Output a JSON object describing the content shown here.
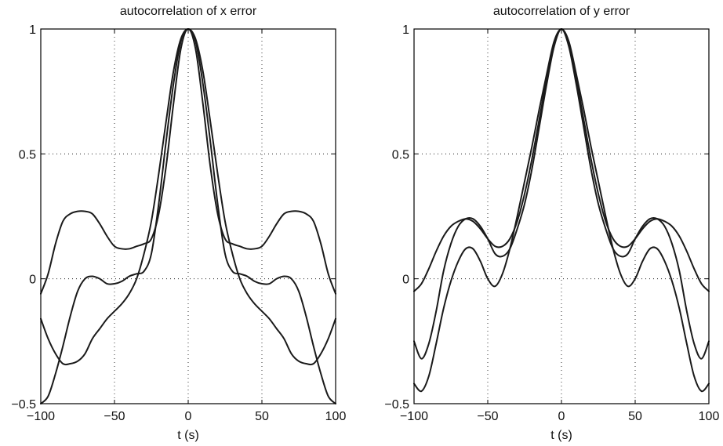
{
  "chart_data": [
    {
      "type": "line",
      "title": "autocorrelation of x error",
      "xlabel": "t (s)",
      "ylabel": "",
      "xlim": [
        -100,
        100
      ],
      "ylim": [
        -0.5,
        1
      ],
      "xticks": [
        -100,
        -50,
        0,
        50,
        100
      ],
      "xtick_labels": [
        "−100",
        "−50",
        "0",
        "50",
        "100"
      ],
      "yticks": [
        -0.5,
        0,
        0.5,
        1
      ],
      "ytick_labels": [
        "−0.5",
        "0",
        "0.5",
        "1"
      ],
      "grid": true,
      "series": [
        {
          "x": [
            -100,
            -95,
            -90,
            -85,
            -80,
            -75,
            -70,
            -65,
            -60,
            -55,
            -50,
            -45,
            -40,
            -35,
            -30,
            -25,
            -20,
            -15,
            -10,
            -5,
            0,
            5,
            10,
            15,
            20,
            25,
            30,
            35,
            40,
            45,
            50,
            55,
            60,
            65,
            70,
            75,
            80,
            85,
            90,
            95,
            100
          ],
          "y": [
            -0.06,
            0.02,
            0.14,
            0.23,
            0.26,
            0.27,
            0.27,
            0.26,
            0.22,
            0.17,
            0.13,
            0.12,
            0.12,
            0.13,
            0.14,
            0.16,
            0.26,
            0.45,
            0.7,
            0.92,
            1,
            0.92,
            0.7,
            0.45,
            0.26,
            0.16,
            0.14,
            0.13,
            0.12,
            0.12,
            0.13,
            0.17,
            0.22,
            0.26,
            0.27,
            0.27,
            0.26,
            0.23,
            0.14,
            0.02,
            -0.06
          ]
        },
        {
          "x": [
            -100,
            -95,
            -90,
            -85,
            -80,
            -75,
            -70,
            -65,
            -60,
            -55,
            -50,
            -45,
            -40,
            -35,
            -30,
            -25,
            -20,
            -15,
            -10,
            -5,
            0,
            5,
            10,
            15,
            20,
            25,
            30,
            35,
            40,
            45,
            50,
            55,
            60,
            65,
            70,
            75,
            80,
            85,
            90,
            95,
            100
          ],
          "y": [
            -0.5,
            -0.47,
            -0.38,
            -0.27,
            -0.15,
            -0.05,
            0.0,
            0.01,
            0.0,
            -0.02,
            -0.02,
            -0.01,
            0.01,
            0.02,
            0.03,
            0.1,
            0.3,
            0.55,
            0.78,
            0.95,
            1,
            0.95,
            0.78,
            0.55,
            0.3,
            0.1,
            0.03,
            0.02,
            0.01,
            -0.01,
            -0.02,
            -0.02,
            0.0,
            0.01,
            0.0,
            -0.05,
            -0.15,
            -0.27,
            -0.38,
            -0.47,
            -0.5
          ]
        },
        {
          "x": [
            -100,
            -95,
            -90,
            -85,
            -80,
            -75,
            -70,
            -65,
            -60,
            -55,
            -50,
            -45,
            -40,
            -35,
            -30,
            -25,
            -20,
            -15,
            -10,
            -5,
            0,
            5,
            10,
            15,
            20,
            25,
            30,
            35,
            40,
            45,
            50,
            55,
            60,
            65,
            70,
            75,
            80,
            85,
            90,
            95,
            100
          ],
          "y": [
            -0.16,
            -0.24,
            -0.3,
            -0.34,
            -0.34,
            -0.33,
            -0.3,
            -0.24,
            -0.2,
            -0.16,
            -0.13,
            -0.1,
            -0.06,
            0.0,
            0.1,
            0.23,
            0.42,
            0.63,
            0.83,
            0.96,
            1,
            0.96,
            0.83,
            0.63,
            0.42,
            0.23,
            0.1,
            0.0,
            -0.06,
            -0.1,
            -0.13,
            -0.16,
            -0.2,
            -0.24,
            -0.3,
            -0.33,
            -0.34,
            -0.34,
            -0.3,
            -0.24,
            -0.16
          ]
        }
      ]
    },
    {
      "type": "line",
      "title": "autocorrelation of y error",
      "xlabel": "t (s)",
      "ylabel": "",
      "xlim": [
        -100,
        100
      ],
      "ylim": [
        -0.5,
        1
      ],
      "xticks": [
        -100,
        -50,
        0,
        50,
        100
      ],
      "xtick_labels": [
        "−100",
        "−50",
        "0",
        "50",
        "100"
      ],
      "yticks": [
        -0.5,
        0,
        0.5,
        1
      ],
      "ytick_labels": [
        "−0.5",
        "0",
        "0.5",
        "1"
      ],
      "grid": true,
      "series": [
        {
          "x": [
            -100,
            -95,
            -90,
            -85,
            -80,
            -75,
            -70,
            -65,
            -60,
            -55,
            -50,
            -45,
            -40,
            -35,
            -30,
            -25,
            -20,
            -15,
            -10,
            -5,
            0,
            5,
            10,
            15,
            20,
            25,
            30,
            35,
            40,
            45,
            50,
            55,
            60,
            65,
            70,
            75,
            80,
            85,
            90,
            95,
            100
          ],
          "y": [
            -0.05,
            -0.02,
            0.04,
            0.11,
            0.17,
            0.21,
            0.23,
            0.24,
            0.23,
            0.2,
            0.16,
            0.13,
            0.13,
            0.16,
            0.23,
            0.34,
            0.48,
            0.64,
            0.8,
            0.94,
            1,
            0.94,
            0.8,
            0.64,
            0.48,
            0.34,
            0.23,
            0.16,
            0.13,
            0.13,
            0.16,
            0.2,
            0.23,
            0.24,
            0.23,
            0.21,
            0.17,
            0.11,
            0.04,
            -0.02,
            -0.05
          ]
        },
        {
          "x": [
            -100,
            -95,
            -90,
            -85,
            -80,
            -75,
            -70,
            -65,
            -60,
            -55,
            -50,
            -45,
            -40,
            -35,
            -30,
            -25,
            -20,
            -15,
            -10,
            -5,
            0,
            5,
            10,
            15,
            20,
            25,
            30,
            35,
            40,
            45,
            50,
            55,
            60,
            65,
            70,
            75,
            80,
            85,
            90,
            95,
            100
          ],
          "y": [
            -0.25,
            -0.32,
            -0.26,
            -0.13,
            0.03,
            0.14,
            0.21,
            0.24,
            0.24,
            0.21,
            0.16,
            0.1,
            0.09,
            0.12,
            0.2,
            0.3,
            0.44,
            0.61,
            0.78,
            0.93,
            1,
            0.93,
            0.78,
            0.61,
            0.44,
            0.3,
            0.2,
            0.12,
            0.09,
            0.1,
            0.16,
            0.21,
            0.24,
            0.24,
            0.21,
            0.14,
            0.03,
            -0.13,
            -0.26,
            -0.32,
            -0.25
          ]
        },
        {
          "x": [
            -100,
            -95,
            -90,
            -85,
            -80,
            -75,
            -70,
            -65,
            -60,
            -55,
            -50,
            -45,
            -40,
            -35,
            -30,
            -25,
            -20,
            -15,
            -10,
            -5,
            0,
            5,
            10,
            15,
            20,
            25,
            30,
            35,
            40,
            45,
            50,
            55,
            60,
            65,
            70,
            75,
            80,
            85,
            90,
            95,
            100
          ],
          "y": [
            -0.42,
            -0.45,
            -0.39,
            -0.26,
            -0.12,
            -0.01,
            0.07,
            0.12,
            0.12,
            0.07,
            0.0,
            -0.03,
            0.02,
            0.12,
            0.25,
            0.39,
            0.53,
            0.68,
            0.82,
            0.95,
            1,
            0.95,
            0.82,
            0.68,
            0.53,
            0.39,
            0.25,
            0.12,
            0.02,
            -0.03,
            0.0,
            0.07,
            0.12,
            0.12,
            0.07,
            -0.01,
            -0.12,
            -0.26,
            -0.39,
            -0.45,
            -0.42
          ]
        }
      ]
    }
  ]
}
